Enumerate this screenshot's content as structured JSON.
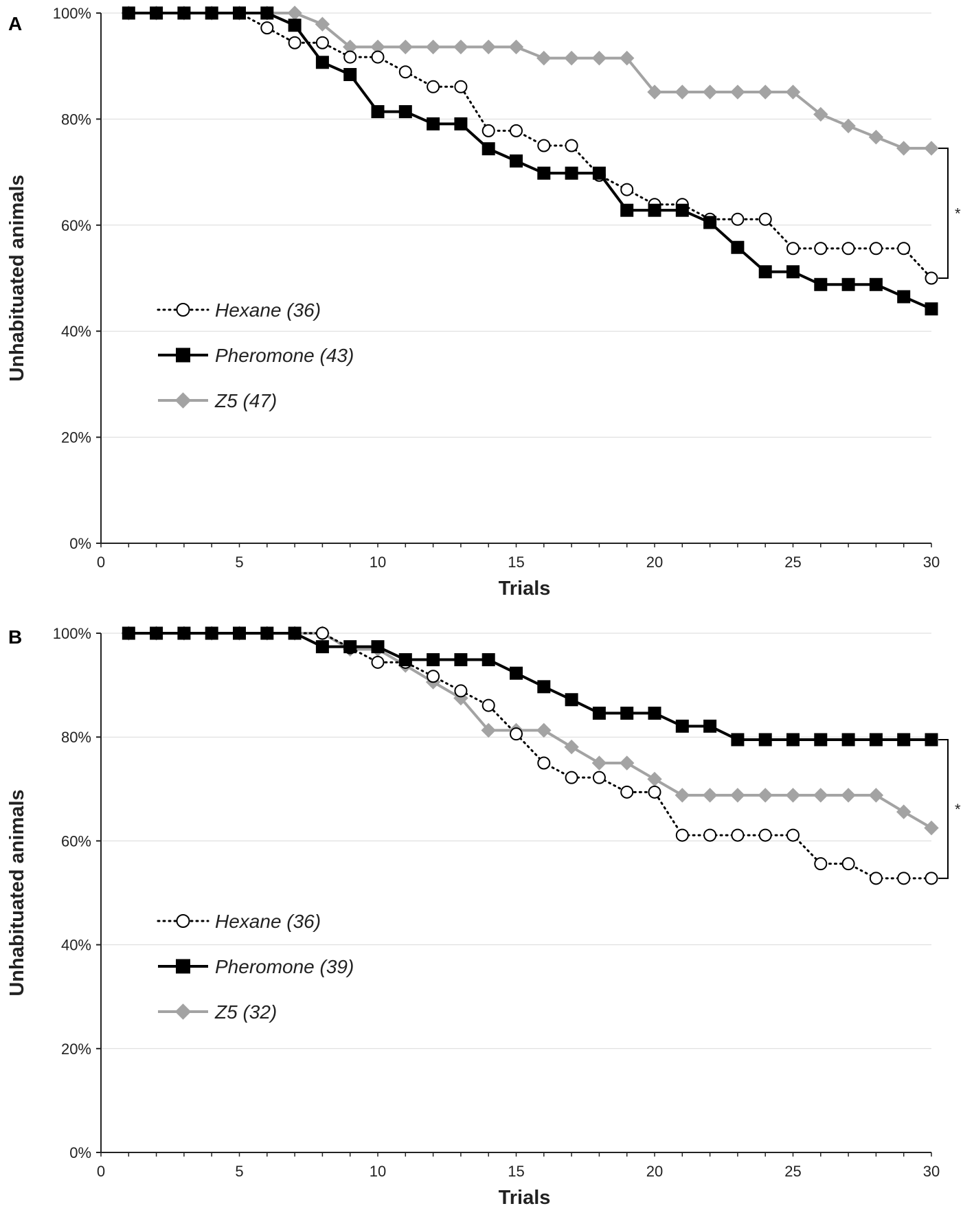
{
  "figure": {
    "domain": "Chart"
  },
  "chart_data": [
    {
      "type": "line",
      "panel": "A",
      "title": "",
      "xlabel": "Trials",
      "ylabel": "Unhabituated animals",
      "xlim": [
        0,
        30
      ],
      "ylim": [
        0,
        100
      ],
      "xticks": [
        0,
        5,
        10,
        15,
        20,
        25,
        30
      ],
      "yticks": [
        0,
        20,
        40,
        60,
        80,
        100
      ],
      "ytick_labels": [
        "0%",
        "20%",
        "40%",
        "60%",
        "80%",
        "100%"
      ],
      "grid": "horizontal",
      "legend_position": "middle-left",
      "x": [
        1,
        2,
        3,
        4,
        5,
        6,
        7,
        8,
        9,
        10,
        11,
        12,
        13,
        14,
        15,
        16,
        17,
        18,
        19,
        20,
        21,
        22,
        23,
        24,
        25,
        26,
        27,
        28,
        29,
        30
      ],
      "series": [
        {
          "name": "Hexane (36)",
          "style": "dotted",
          "marker": "circle",
          "color": "#000000",
          "values": [
            100,
            100,
            100,
            100,
            100,
            97.2,
            94.4,
            94.4,
            91.7,
            91.7,
            88.9,
            86.1,
            86.1,
            77.8,
            77.8,
            75.0,
            75.0,
            69.4,
            66.7,
            63.9,
            63.9,
            61.1,
            61.1,
            61.1,
            55.6,
            55.6,
            55.6,
            55.6,
            55.6,
            50.0
          ]
        },
        {
          "name": "Pheromone (43)",
          "style": "solid",
          "marker": "square",
          "color": "#000000",
          "values": [
            100,
            100,
            100,
            100,
            100,
            100,
            97.7,
            90.7,
            88.4,
            81.4,
            81.4,
            79.1,
            79.1,
            74.4,
            72.1,
            69.8,
            69.8,
            69.8,
            62.8,
            62.8,
            62.8,
            60.5,
            55.8,
            51.2,
            51.2,
            48.8,
            48.8,
            48.8,
            46.5,
            44.2
          ]
        },
        {
          "name": "Z5 (47)",
          "style": "solid",
          "marker": "diamond",
          "color": "#a3a3a3",
          "values": [
            100,
            100,
            100,
            100,
            100,
            100,
            100,
            97.9,
            93.6,
            93.6,
            93.6,
            93.6,
            93.6,
            93.6,
            93.6,
            91.5,
            91.5,
            91.5,
            91.5,
            85.1,
            85.1,
            85.1,
            85.1,
            85.1,
            85.1,
            80.9,
            78.7,
            76.6,
            74.5,
            74.5
          ]
        }
      ],
      "annotations": [
        {
          "type": "bracket",
          "from_value": 74.5,
          "to_value": 50.0,
          "at_x": 30,
          "label": "*"
        }
      ]
    },
    {
      "type": "line",
      "panel": "B",
      "title": "",
      "xlabel": "Trials",
      "ylabel": "Unhabituated animals",
      "xlim": [
        0,
        30
      ],
      "ylim": [
        0,
        100
      ],
      "xticks": [
        0,
        5,
        10,
        15,
        20,
        25,
        30
      ],
      "yticks": [
        0,
        20,
        40,
        60,
        80,
        100
      ],
      "ytick_labels": [
        "0%",
        "20%",
        "40%",
        "60%",
        "80%",
        "100%"
      ],
      "grid": "horizontal",
      "legend_position": "middle-left",
      "x": [
        1,
        2,
        3,
        4,
        5,
        6,
        7,
        8,
        9,
        10,
        11,
        12,
        13,
        14,
        15,
        16,
        17,
        18,
        19,
        20,
        21,
        22,
        23,
        24,
        25,
        26,
        27,
        28,
        29,
        30
      ],
      "series": [
        {
          "name": "Hexane (36)",
          "style": "dotted",
          "marker": "circle",
          "color": "#000000",
          "values": [
            100,
            100,
            100,
            100,
            100,
            100,
            100,
            100,
            97.2,
            94.4,
            94.4,
            91.7,
            88.9,
            86.1,
            80.6,
            75.0,
            72.2,
            72.2,
            69.4,
            69.4,
            61.1,
            61.1,
            61.1,
            61.1,
            61.1,
            55.6,
            55.6,
            52.8,
            52.8,
            52.8
          ]
        },
        {
          "name": "Pheromone (39)",
          "style": "solid",
          "marker": "square",
          "color": "#000000",
          "values": [
            100,
            100,
            100,
            100,
            100,
            100,
            100,
            97.4,
            97.4,
            97.4,
            94.9,
            94.9,
            94.9,
            94.9,
            92.3,
            89.7,
            87.2,
            84.6,
            84.6,
            84.6,
            82.1,
            82.1,
            79.5,
            79.5,
            79.5,
            79.5,
            79.5,
            79.5,
            79.5,
            79.5
          ]
        },
        {
          "name": "Z5 (32)",
          "style": "solid",
          "marker": "diamond",
          "color": "#a3a3a3",
          "values": [
            100,
            100,
            100,
            100,
            100,
            100,
            100,
            100,
            96.9,
            96.9,
            93.8,
            90.6,
            87.5,
            81.3,
            81.3,
            81.3,
            78.1,
            75.0,
            75.0,
            71.9,
            68.8,
            68.8,
            68.8,
            68.8,
            68.8,
            68.8,
            68.8,
            68.8,
            65.6,
            62.5
          ]
        }
      ],
      "annotations": [
        {
          "type": "bracket",
          "from_value": 79.5,
          "to_value": 52.8,
          "at_x": 30,
          "label": "*"
        }
      ]
    }
  ]
}
